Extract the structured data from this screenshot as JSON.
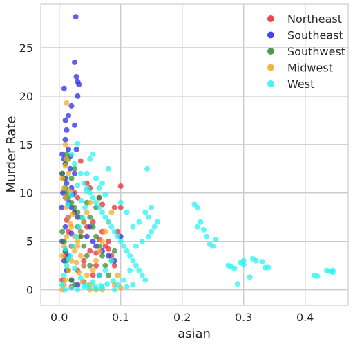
{
  "chart_data": {
    "type": "scatter",
    "title": "",
    "xlabel": "asian",
    "ylabel": "Murder Rate",
    "xlim": [
      -0.03,
      0.47
    ],
    "ylim": [
      -1.6,
      29.5
    ],
    "xticks": [
      0.0,
      0.1,
      0.2,
      0.3,
      0.4
    ],
    "xtick_labels": [
      "0.0",
      "0.1",
      "0.2",
      "0.3",
      "0.4"
    ],
    "yticks": [
      0,
      5,
      10,
      15,
      20,
      25
    ],
    "ytick_labels": [
      "0",
      "5",
      "10",
      "15",
      "20",
      "25"
    ],
    "grid": true,
    "legend_position": "top-right",
    "series": [
      {
        "name": "Northeast",
        "color": "#e8262a",
        "points": [
          [
            0.005,
            1.0
          ],
          [
            0.01,
            3.5
          ],
          [
            0.015,
            6.0
          ],
          [
            0.02,
            4.5
          ],
          [
            0.025,
            8.0
          ],
          [
            0.03,
            2.0
          ],
          [
            0.035,
            5.5
          ],
          [
            0.04,
            3.0
          ],
          [
            0.045,
            6.5
          ],
          [
            0.05,
            4.0
          ],
          [
            0.055,
            7.0
          ],
          [
            0.06,
            2.5
          ],
          [
            0.065,
            9.5
          ],
          [
            0.07,
            6.0
          ],
          [
            0.075,
            4.5
          ],
          [
            0.08,
            5.0
          ],
          [
            0.085,
            3.5
          ],
          [
            0.09,
            8.5
          ],
          [
            0.095,
            6.0
          ],
          [
            0.1,
            10.7
          ],
          [
            0.1,
            8.5
          ],
          [
            0.035,
            13.3
          ],
          [
            0.05,
            10.5
          ],
          [
            0.03,
            9.5
          ],
          [
            0.045,
            11.0
          ],
          [
            0.055,
            1.5
          ],
          [
            0.06,
            3.8
          ],
          [
            0.07,
            8.8
          ],
          [
            0.08,
            4.2
          ],
          [
            0.09,
            2.5
          ],
          [
            0.02,
            0.3
          ],
          [
            0.012,
            7.2
          ],
          [
            0.025,
            10.0
          ],
          [
            0.04,
            0.8
          ],
          [
            0.065,
            5.2
          ]
        ]
      },
      {
        "name": "Southeast",
        "color": "#2222e8",
        "points": [
          [
            0.027,
            28.2
          ],
          [
            0.025,
            23.5
          ],
          [
            0.028,
            22.0
          ],
          [
            0.03,
            21.5
          ],
          [
            0.03,
            20.0
          ],
          [
            0.032,
            21.2
          ],
          [
            0.008,
            20.8
          ],
          [
            0.02,
            19.0
          ],
          [
            0.015,
            18.0
          ],
          [
            0.01,
            17.5
          ],
          [
            0.012,
            16.5
          ],
          [
            0.025,
            17.0
          ],
          [
            0.01,
            15.5
          ],
          [
            0.015,
            14.5
          ],
          [
            0.005,
            14.0
          ],
          [
            0.008,
            13.5
          ],
          [
            0.01,
            13.0
          ],
          [
            0.018,
            12.5
          ],
          [
            0.005,
            12.0
          ],
          [
            0.01,
            11.5
          ],
          [
            0.012,
            11.0
          ],
          [
            0.02,
            10.5
          ],
          [
            0.006,
            10.0
          ],
          [
            0.01,
            9.5
          ],
          [
            0.015,
            9.0
          ],
          [
            0.02,
            8.5
          ],
          [
            0.025,
            8.0
          ],
          [
            0.03,
            7.5
          ],
          [
            0.04,
            7.0
          ],
          [
            0.05,
            6.5
          ],
          [
            0.035,
            6.0
          ],
          [
            0.045,
            5.5
          ],
          [
            0.055,
            5.0
          ],
          [
            0.06,
            4.5
          ],
          [
            0.07,
            4.0
          ],
          [
            0.08,
            3.5
          ],
          [
            0.09,
            3.0
          ],
          [
            0.005,
            5.0
          ],
          [
            0.01,
            6.5
          ],
          [
            0.015,
            7.5
          ],
          [
            0.008,
            3.0
          ],
          [
            0.012,
            2.0
          ],
          [
            0.02,
            1.0
          ],
          [
            0.03,
            0.5
          ],
          [
            0.04,
            2.5
          ],
          [
            0.1,
            5.5
          ],
          [
            0.065,
            1.5
          ],
          [
            0.025,
            12.0
          ],
          [
            0.028,
            14.5
          ],
          [
            0.004,
            8.5
          ],
          [
            0.01,
            4.0
          ],
          [
            0.015,
            3.5
          ],
          [
            0.02,
            5.8
          ],
          [
            0.022,
            9.8
          ],
          [
            0.018,
            13.8
          ]
        ]
      },
      {
        "name": "Southwest",
        "color": "#2e8b2e",
        "points": [
          [
            0.005,
            12.0
          ],
          [
            0.008,
            11.5
          ],
          [
            0.01,
            10.5
          ],
          [
            0.012,
            10.0
          ],
          [
            0.015,
            9.5
          ],
          [
            0.02,
            9.0
          ],
          [
            0.025,
            8.5
          ],
          [
            0.03,
            8.0
          ],
          [
            0.035,
            7.5
          ],
          [
            0.04,
            7.0
          ],
          [
            0.045,
            9.0
          ],
          [
            0.05,
            7.5
          ],
          [
            0.055,
            6.5
          ],
          [
            0.06,
            5.5
          ],
          [
            0.065,
            4.5
          ],
          [
            0.07,
            3.5
          ],
          [
            0.075,
            2.5
          ],
          [
            0.08,
            1.5
          ],
          [
            0.085,
            3.0
          ],
          [
            0.09,
            4.0
          ],
          [
            0.01,
            13.0
          ],
          [
            0.012,
            14.0
          ],
          [
            0.015,
            13.5
          ],
          [
            0.005,
            6.0
          ],
          [
            0.008,
            5.0
          ],
          [
            0.01,
            4.0
          ],
          [
            0.012,
            3.0
          ],
          [
            0.015,
            2.0
          ],
          [
            0.02,
            1.0
          ],
          [
            0.025,
            0.5
          ],
          [
            0.03,
            6.5
          ],
          [
            0.035,
            5.5
          ],
          [
            0.04,
            4.5
          ],
          [
            0.045,
            3.5
          ],
          [
            0.05,
            2.5
          ],
          [
            0.06,
            8.5
          ],
          [
            0.065,
            9.5
          ],
          [
            0.02,
            11.5
          ],
          [
            0.025,
            12.5
          ]
        ]
      },
      {
        "name": "Midwest",
        "color": "#f5a623",
        "points": [
          [
            0.012,
            19.3
          ],
          [
            0.01,
            15.0
          ],
          [
            0.012,
            13.5
          ],
          [
            0.015,
            12.0
          ],
          [
            0.005,
            11.5
          ],
          [
            0.008,
            10.5
          ],
          [
            0.01,
            9.5
          ],
          [
            0.012,
            8.5
          ],
          [
            0.015,
            7.5
          ],
          [
            0.02,
            6.5
          ],
          [
            0.025,
            5.5
          ],
          [
            0.03,
            4.5
          ],
          [
            0.035,
            3.5
          ],
          [
            0.04,
            2.5
          ],
          [
            0.045,
            1.5
          ],
          [
            0.05,
            0.5
          ],
          [
            0.055,
            2.0
          ],
          [
            0.06,
            3.0
          ],
          [
            0.065,
            4.0
          ],
          [
            0.07,
            5.0
          ],
          [
            0.075,
            6.0
          ],
          [
            0.08,
            7.0
          ],
          [
            0.085,
            8.0
          ],
          [
            0.09,
            0.5
          ],
          [
            0.095,
            1.5
          ],
          [
            0.1,
            0.2
          ],
          [
            0.005,
            0.0
          ],
          [
            0.008,
            0.5
          ],
          [
            0.01,
            1.0
          ],
          [
            0.015,
            2.0
          ],
          [
            0.02,
            3.0
          ],
          [
            0.025,
            4.0
          ],
          [
            0.03,
            5.0
          ],
          [
            0.035,
            6.0
          ],
          [
            0.04,
            7.0
          ],
          [
            0.045,
            8.0
          ],
          [
            0.05,
            9.0
          ],
          [
            0.005,
            3.5
          ],
          [
            0.008,
            4.5
          ],
          [
            0.012,
            5.5
          ],
          [
            0.018,
            6.8
          ],
          [
            0.022,
            7.8
          ],
          [
            0.028,
            2.8
          ],
          [
            0.032,
            1.8
          ],
          [
            0.038,
            0.8
          ],
          [
            0.05,
            0.0
          ],
          [
            0.06,
            0.0
          ],
          [
            0.07,
            0.0
          ],
          [
            0.017,
            10.2
          ],
          [
            0.01,
            12.8
          ]
        ]
      },
      {
        "name": "West",
        "color": "#22f2f2",
        "points": [
          [
            0.03,
            15.1
          ],
          [
            0.02,
            14.0
          ],
          [
            0.025,
            13.0
          ],
          [
            0.035,
            12.0
          ],
          [
            0.04,
            11.0
          ],
          [
            0.045,
            10.5
          ],
          [
            0.05,
            10.0
          ],
          [
            0.055,
            9.5
          ],
          [
            0.06,
            9.0
          ],
          [
            0.065,
            8.5
          ],
          [
            0.07,
            8.0
          ],
          [
            0.075,
            7.5
          ],
          [
            0.08,
            7.0
          ],
          [
            0.085,
            6.5
          ],
          [
            0.09,
            6.0
          ],
          [
            0.095,
            5.5
          ],
          [
            0.1,
            5.0
          ],
          [
            0.105,
            4.5
          ],
          [
            0.11,
            4.0
          ],
          [
            0.115,
            3.5
          ],
          [
            0.12,
            3.0
          ],
          [
            0.125,
            2.5
          ],
          [
            0.13,
            2.0
          ],
          [
            0.135,
            1.5
          ],
          [
            0.14,
            1.0
          ],
          [
            0.145,
            5.5
          ],
          [
            0.15,
            6.0
          ],
          [
            0.155,
            6.5
          ],
          [
            0.16,
            7.0
          ],
          [
            0.15,
            8.5
          ],
          [
            0.145,
            7.5
          ],
          [
            0.14,
            8.0
          ],
          [
            0.143,
            12.5
          ],
          [
            0.08,
            12.5
          ],
          [
            0.06,
            11.5
          ],
          [
            0.05,
            13.5
          ],
          [
            0.045,
            12.0
          ],
          [
            0.055,
            14.0
          ],
          [
            0.065,
            10.5
          ],
          [
            0.07,
            11.0
          ],
          [
            0.075,
            9.8
          ],
          [
            0.1,
            9.0
          ],
          [
            0.11,
            8.0
          ],
          [
            0.12,
            6.5
          ],
          [
            0.13,
            7.0
          ],
          [
            0.135,
            5.0
          ],
          [
            0.125,
            4.5
          ],
          [
            0.115,
            2.0
          ],
          [
            0.105,
            1.0
          ],
          [
            0.095,
            0.5
          ],
          [
            0.085,
            3.0
          ],
          [
            0.075,
            2.0
          ],
          [
            0.065,
            1.5
          ],
          [
            0.055,
            0.8
          ],
          [
            0.045,
            0.5
          ],
          [
            0.035,
            1.2
          ],
          [
            0.025,
            2.2
          ],
          [
            0.015,
            3.2
          ],
          [
            0.01,
            4.2
          ],
          [
            0.005,
            0.5
          ],
          [
            0.008,
            1.5
          ],
          [
            0.012,
            2.5
          ],
          [
            0.018,
            3.5
          ],
          [
            0.022,
            4.5
          ],
          [
            0.028,
            5.5
          ],
          [
            0.032,
            6.5
          ],
          [
            0.038,
            7.5
          ],
          [
            0.042,
            8.5
          ],
          [
            0.048,
            0.2
          ],
          [
            0.058,
            0.3
          ],
          [
            0.068,
            0.4
          ],
          [
            0.078,
            0.6
          ],
          [
            0.088,
            0.9
          ],
          [
            0.22,
            8.8
          ],
          [
            0.225,
            8.5
          ],
          [
            0.23,
            7.0
          ],
          [
            0.225,
            6.5
          ],
          [
            0.235,
            6.2
          ],
          [
            0.24,
            5.5
          ],
          [
            0.245,
            4.7
          ],
          [
            0.25,
            4.5
          ],
          [
            0.255,
            5.2
          ],
          [
            0.275,
            2.5
          ],
          [
            0.28,
            2.4
          ],
          [
            0.285,
            2.2
          ],
          [
            0.29,
            0.6
          ],
          [
            0.295,
            2.8
          ],
          [
            0.3,
            3.0
          ],
          [
            0.3,
            2.6
          ],
          [
            0.31,
            1.3
          ],
          [
            0.315,
            3.2
          ],
          [
            0.32,
            3.0
          ],
          [
            0.33,
            2.9
          ],
          [
            0.335,
            2.3
          ],
          [
            0.34,
            2.3
          ],
          [
            0.415,
            1.5
          ],
          [
            0.42,
            1.4
          ],
          [
            0.435,
            2.0
          ],
          [
            0.44,
            1.9
          ],
          [
            0.445,
            2.0
          ],
          [
            0.445,
            1.8
          ],
          [
            0.01,
            0.0
          ],
          [
            0.02,
            0.2
          ],
          [
            0.03,
            0.0
          ],
          [
            0.04,
            0.3
          ],
          [
            0.06,
            0.1
          ],
          [
            0.07,
            0.2
          ],
          [
            0.09,
            0.0
          ],
          [
            0.11,
            0.3
          ],
          [
            0.12,
            0.5
          ],
          [
            0.014,
            8.8
          ],
          [
            0.02,
            9.8
          ],
          [
            0.03,
            10.8
          ],
          [
            0.036,
            9.2
          ],
          [
            0.044,
            10.2
          ]
        ]
      }
    ]
  }
}
